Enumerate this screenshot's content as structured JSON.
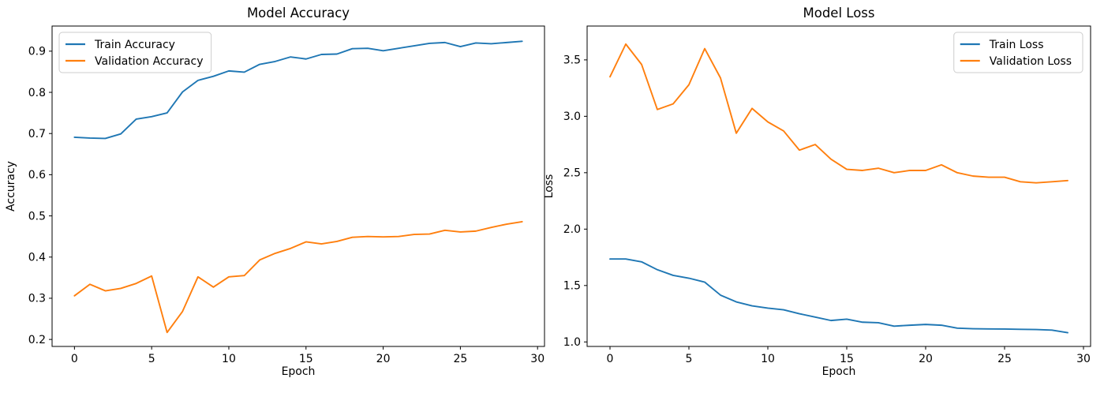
{
  "figure": {
    "background": "#ffffff",
    "text_color": "#000000",
    "spine_color": "#000000"
  },
  "chart_data": [
    {
      "type": "line",
      "title": "Model Accuracy",
      "xlabel": "Epoch",
      "ylabel": "Accuracy",
      "x": [
        0,
        1,
        2,
        3,
        4,
        5,
        6,
        7,
        8,
        9,
        10,
        11,
        12,
        13,
        14,
        15,
        16,
        17,
        18,
        19,
        20,
        21,
        22,
        23,
        24,
        25,
        26,
        27,
        28,
        29
      ],
      "series": [
        {
          "name": "Train Accuracy",
          "color": "#1f77b4",
          "values": [
            0.691,
            0.689,
            0.688,
            0.699,
            0.735,
            0.741,
            0.75,
            0.801,
            0.829,
            0.839,
            0.852,
            0.849,
            0.868,
            0.875,
            0.886,
            0.881,
            0.892,
            0.893,
            0.906,
            0.907,
            0.901,
            0.907,
            0.913,
            0.919,
            0.921,
            0.911,
            0.92,
            0.918,
            0.921,
            0.924
          ]
        },
        {
          "name": "Validation Accuracy",
          "color": "#ff7f0e",
          "values": [
            0.306,
            0.334,
            0.318,
            0.324,
            0.336,
            0.354,
            0.217,
            0.268,
            0.352,
            0.327,
            0.352,
            0.355,
            0.393,
            0.409,
            0.421,
            0.437,
            0.432,
            0.438,
            0.448,
            0.45,
            0.449,
            0.45,
            0.455,
            0.456,
            0.465,
            0.461,
            0.463,
            0.472,
            0.48,
            0.486
          ]
        }
      ],
      "xlim": [
        -1.45,
        30.45
      ],
      "ylim": [
        0.183,
        0.961
      ],
      "xticks": [
        0,
        5,
        10,
        15,
        20,
        25,
        30
      ],
      "yticks": [
        0.2,
        0.3,
        0.4,
        0.5,
        0.6,
        0.7,
        0.8,
        0.9
      ],
      "ytick_decimals": 1,
      "grid": false,
      "legend": {
        "position": "top-left",
        "entries": [
          "Train Accuracy",
          "Validation Accuracy"
        ]
      }
    },
    {
      "type": "line",
      "title": "Model Loss",
      "xlabel": "Epoch",
      "ylabel": "Loss",
      "x": [
        0,
        1,
        2,
        3,
        4,
        5,
        6,
        7,
        8,
        9,
        10,
        11,
        12,
        13,
        14,
        15,
        16,
        17,
        18,
        19,
        20,
        21,
        22,
        23,
        24,
        25,
        26,
        27,
        28,
        29
      ],
      "series": [
        {
          "name": "Train Loss",
          "color": "#1f77b4",
          "values": [
            1.735,
            1.735,
            1.71,
            1.64,
            1.59,
            1.565,
            1.53,
            1.415,
            1.355,
            1.32,
            1.3,
            1.285,
            1.25,
            1.22,
            1.19,
            1.202,
            1.175,
            1.17,
            1.14,
            1.148,
            1.155,
            1.148,
            1.122,
            1.117,
            1.115,
            1.114,
            1.112,
            1.11,
            1.105,
            1.082
          ]
        },
        {
          "name": "Validation Loss",
          "color": "#ff7f0e",
          "values": [
            3.35,
            3.64,
            3.46,
            3.06,
            3.11,
            3.28,
            3.6,
            3.34,
            2.85,
            3.07,
            2.95,
            2.87,
            2.7,
            2.75,
            2.62,
            2.53,
            2.52,
            2.54,
            2.5,
            2.52,
            2.52,
            2.57,
            2.5,
            2.47,
            2.46,
            2.46,
            2.42,
            2.41,
            2.42,
            2.43
          ]
        }
      ],
      "xlim": [
        -1.45,
        30.45
      ],
      "ylim": [
        0.96,
        3.8
      ],
      "xticks": [
        0,
        5,
        10,
        15,
        20,
        25,
        30
      ],
      "yticks": [
        1.0,
        1.5,
        2.0,
        2.5,
        3.0,
        3.5
      ],
      "ytick_decimals": 1,
      "grid": false,
      "legend": {
        "position": "top-right",
        "entries": [
          "Train Loss",
          "Validation Loss"
        ]
      }
    }
  ]
}
